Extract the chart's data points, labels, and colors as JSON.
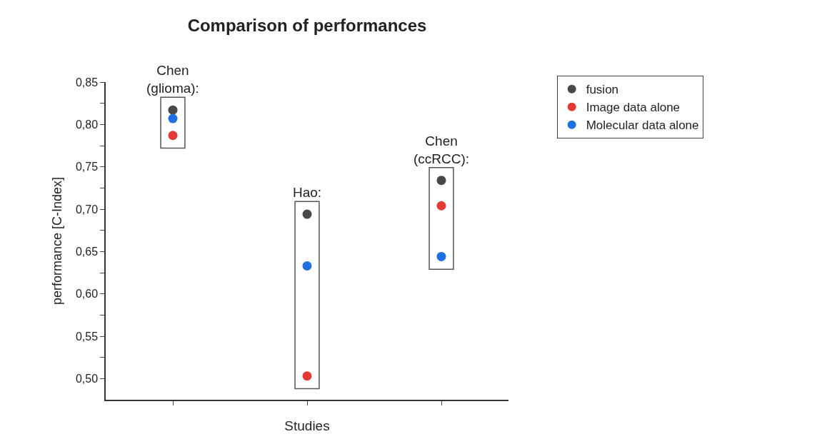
{
  "chart_data": {
    "type": "scatter",
    "title": "Comparison of performances",
    "xlabel": "Studies",
    "ylabel": "performance [C-Index]",
    "categories": [
      null,
      null,
      null
    ],
    "series": [
      {
        "name": "fusion",
        "color": "#484848",
        "values": [
          0.817,
          0.694,
          0.734
        ]
      },
      {
        "name": "Image data alone",
        "color": "#e53935",
        "values": [
          0.787,
          0.503,
          0.704
        ]
      },
      {
        "name": "Molecular data alone",
        "color": "#1e6fe0",
        "values": [
          0.807,
          0.633,
          0.644
        ]
      }
    ],
    "annotations": [
      "Chen\n(glioma):",
      "Hao:",
      "Chen\n(ccRCC):"
    ],
    "ylim": [
      0.475,
      0.85
    ],
    "yticks": [
      {
        "value": 0.5,
        "label": "0,50"
      },
      {
        "value": 0.525,
        "label": null
      },
      {
        "value": 0.55,
        "label": "0,55"
      },
      {
        "value": 0.575,
        "label": null
      },
      {
        "value": 0.6,
        "label": "0,60"
      },
      {
        "value": 0.625,
        "label": null
      },
      {
        "value": 0.65,
        "label": "0,65"
      },
      {
        "value": 0.675,
        "label": null
      },
      {
        "value": 0.7,
        "label": "0,70"
      },
      {
        "value": 0.725,
        "label": null
      },
      {
        "value": 0.75,
        "label": "0,75"
      },
      {
        "value": 0.775,
        "label": null
      },
      {
        "value": 0.8,
        "label": "0,80"
      },
      {
        "value": 0.825,
        "label": null
      },
      {
        "value": 0.85,
        "label": "0,85"
      }
    ],
    "tick_labels": "y",
    "legend": "top right",
    "marker": "circle"
  }
}
